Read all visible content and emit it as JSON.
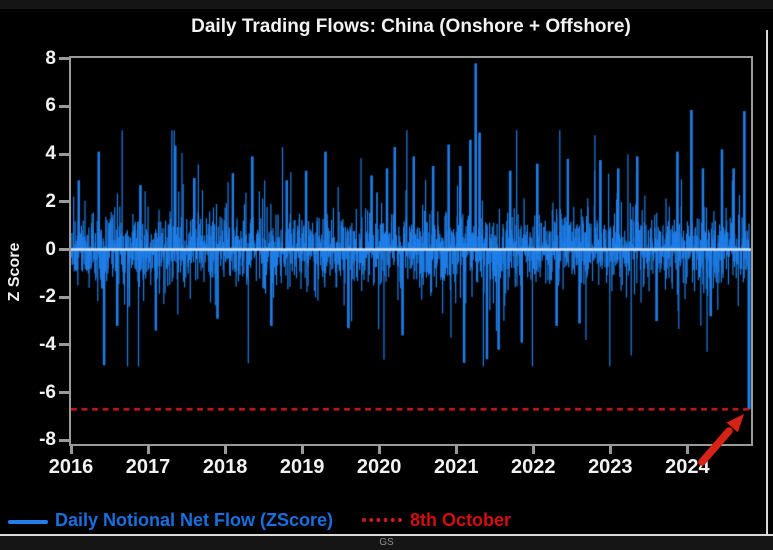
{
  "window": {
    "background": "#000000"
  },
  "chart_data": {
    "type": "line",
    "render_style": "dense daily vertical strokes from zero line",
    "title": "Daily Trading Flows: China (Onshore + Offshore)",
    "ylabel": "Z Score",
    "ylim": [
      -8,
      8
    ],
    "yticks": [
      8,
      6,
      4,
      2,
      0,
      -2,
      -4,
      -6,
      -8
    ],
    "xticks": [
      2016,
      2017,
      2018,
      2019,
      2020,
      2021,
      2022,
      2023,
      2024
    ],
    "x_start": 2016.0,
    "x_end": 2024.8,
    "n_points": 2280,
    "grid": false,
    "legend_position": "bottom-left",
    "series": [
      {
        "name": "Daily Notional Net Flow (ZScore)",
        "color": "#1f7ee8"
      }
    ],
    "zero_line": {
      "value": 0,
      "color": "#d9e8fd"
    },
    "threshold_line": {
      "label": "8th October",
      "value": -6.7,
      "style": "dashed",
      "color": "#c81d1d"
    },
    "last_point": {
      "label": "8th October",
      "value": -6.7,
      "x": 2024.8
    },
    "noise": {
      "seed": 1234567,
      "std": 0.8
    },
    "notable_points": [
      [
        2016.1,
        2.9
      ],
      [
        2016.36,
        4.1
      ],
      [
        2016.43,
        -4.85
      ],
      [
        2016.6,
        -3.2
      ],
      [
        2016.9,
        2.7
      ],
      [
        2017.1,
        -3.4
      ],
      [
        2017.35,
        4.35
      ],
      [
        2017.6,
        3.0
      ],
      [
        2017.9,
        -2.9
      ],
      [
        2018.1,
        3.2
      ],
      [
        2018.35,
        3.9
      ],
      [
        2018.6,
        -3.2
      ],
      [
        2018.8,
        2.9
      ],
      [
        2019.05,
        3.3
      ],
      [
        2019.3,
        4.1
      ],
      [
        2019.6,
        -3.3
      ],
      [
        2019.9,
        3.1
      ],
      [
        2020.1,
        3.4
      ],
      [
        2020.2,
        4.3
      ],
      [
        2020.3,
        -3.6
      ],
      [
        2020.45,
        3.9
      ],
      [
        2020.7,
        3.5
      ],
      [
        2020.9,
        4.4
      ],
      [
        2021.05,
        3.5
      ],
      [
        2021.1,
        -4.75
      ],
      [
        2021.18,
        4.6
      ],
      [
        2021.25,
        7.8
      ],
      [
        2021.3,
        4.9
      ],
      [
        2021.4,
        -4.6
      ],
      [
        2021.55,
        -4.2
      ],
      [
        2021.7,
        3.3
      ],
      [
        2021.85,
        -3.9
      ],
      [
        2022.05,
        3.6
      ],
      [
        2022.3,
        -3.2
      ],
      [
        2022.45,
        3.8
      ],
      [
        2022.6,
        -3.1
      ],
      [
        2022.87,
        3.75
      ],
      [
        2023.1,
        3.4
      ],
      [
        2023.35,
        3.9
      ],
      [
        2023.6,
        -3.0
      ],
      [
        2023.87,
        4.1
      ],
      [
        2024.05,
        5.85
      ],
      [
        2024.2,
        3.4
      ],
      [
        2024.3,
        -2.8
      ],
      [
        2024.45,
        4.2
      ],
      [
        2024.6,
        3.4
      ],
      [
        2024.74,
        5.8
      ],
      [
        2024.8,
        -6.7
      ]
    ]
  },
  "axis": {
    "color": "#9a9a9a",
    "tick_label_color": "#f2f2f2"
  },
  "legend": {
    "series_label": "Daily Notional Net Flow (ZScore)",
    "threshold_label": "8th October"
  },
  "annotation_arrow": {
    "color": "#d52315"
  },
  "footer": {
    "watermark": "GS"
  }
}
